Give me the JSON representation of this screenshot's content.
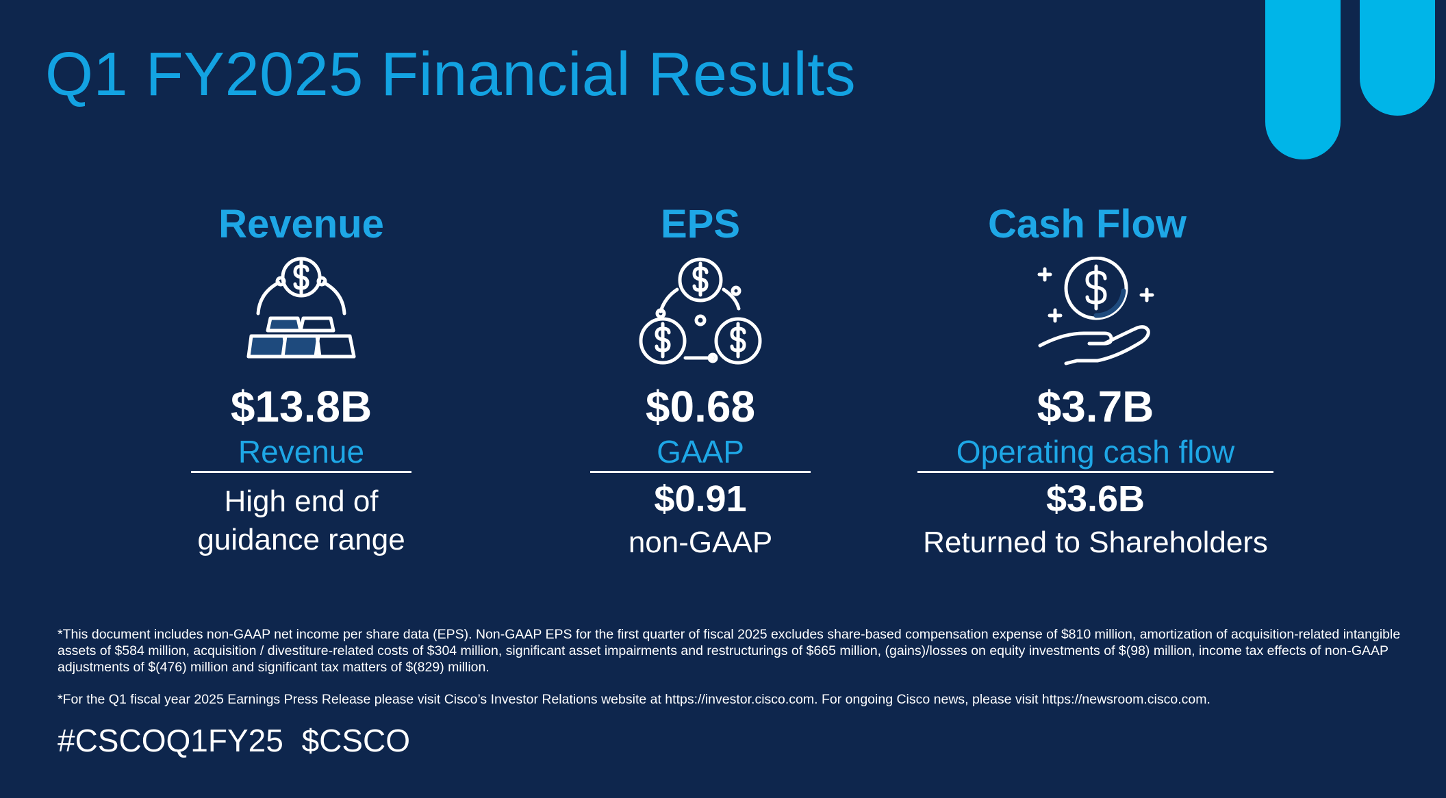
{
  "title": "Q1 FY2025 Financial Results",
  "colors": {
    "background": "#0e264d",
    "accent": "#1ea7e6",
    "decor": "#00b5e8",
    "text": "#ffffff"
  },
  "columns": [
    {
      "heading": "Revenue",
      "icon": "gold-bars-coin-icon",
      "value": "$13.8B",
      "label": "Revenue",
      "secondary_value": "",
      "note_line1": "High end of",
      "note_line2": "guidance range"
    },
    {
      "heading": "EPS",
      "icon": "three-coins-icon",
      "value": "$0.68",
      "label": "GAAP",
      "secondary_value": "$0.91",
      "note_line1": "non-GAAP",
      "note_line2": ""
    },
    {
      "heading": "Cash Flow",
      "icon": "hand-holding-coin-icon",
      "value": "$3.7B",
      "label": "Operating cash flow",
      "secondary_value": "$3.6B",
      "note_line1": "Returned to Shareholders",
      "note_line2": ""
    }
  ],
  "footnotes": [
    "*This document includes non-GAAP net income per share data (EPS). Non-GAAP EPS for the first quarter of fiscal 2025 excludes share-based compensation expense of $810 million, amortization of acquisition-related intangible assets of $584 million, acquisition / divestiture-related costs of $304 million, significant asset impairments and restructurings of $665 million, (gains)/losses on equity investments of $(98) million, income tax effects of non-GAAP adjustments of $(476) million and significant tax matters of $(829) million.",
    "*For the Q1 fiscal year 2025 Earnings Press Release please visit Cisco’s Investor Relations website at https://investor.cisco.com. For ongoing Cisco news, please visit https://newsroom.cisco.com."
  ],
  "hashtags": "#CSCOQ1FY25 $CSCO"
}
